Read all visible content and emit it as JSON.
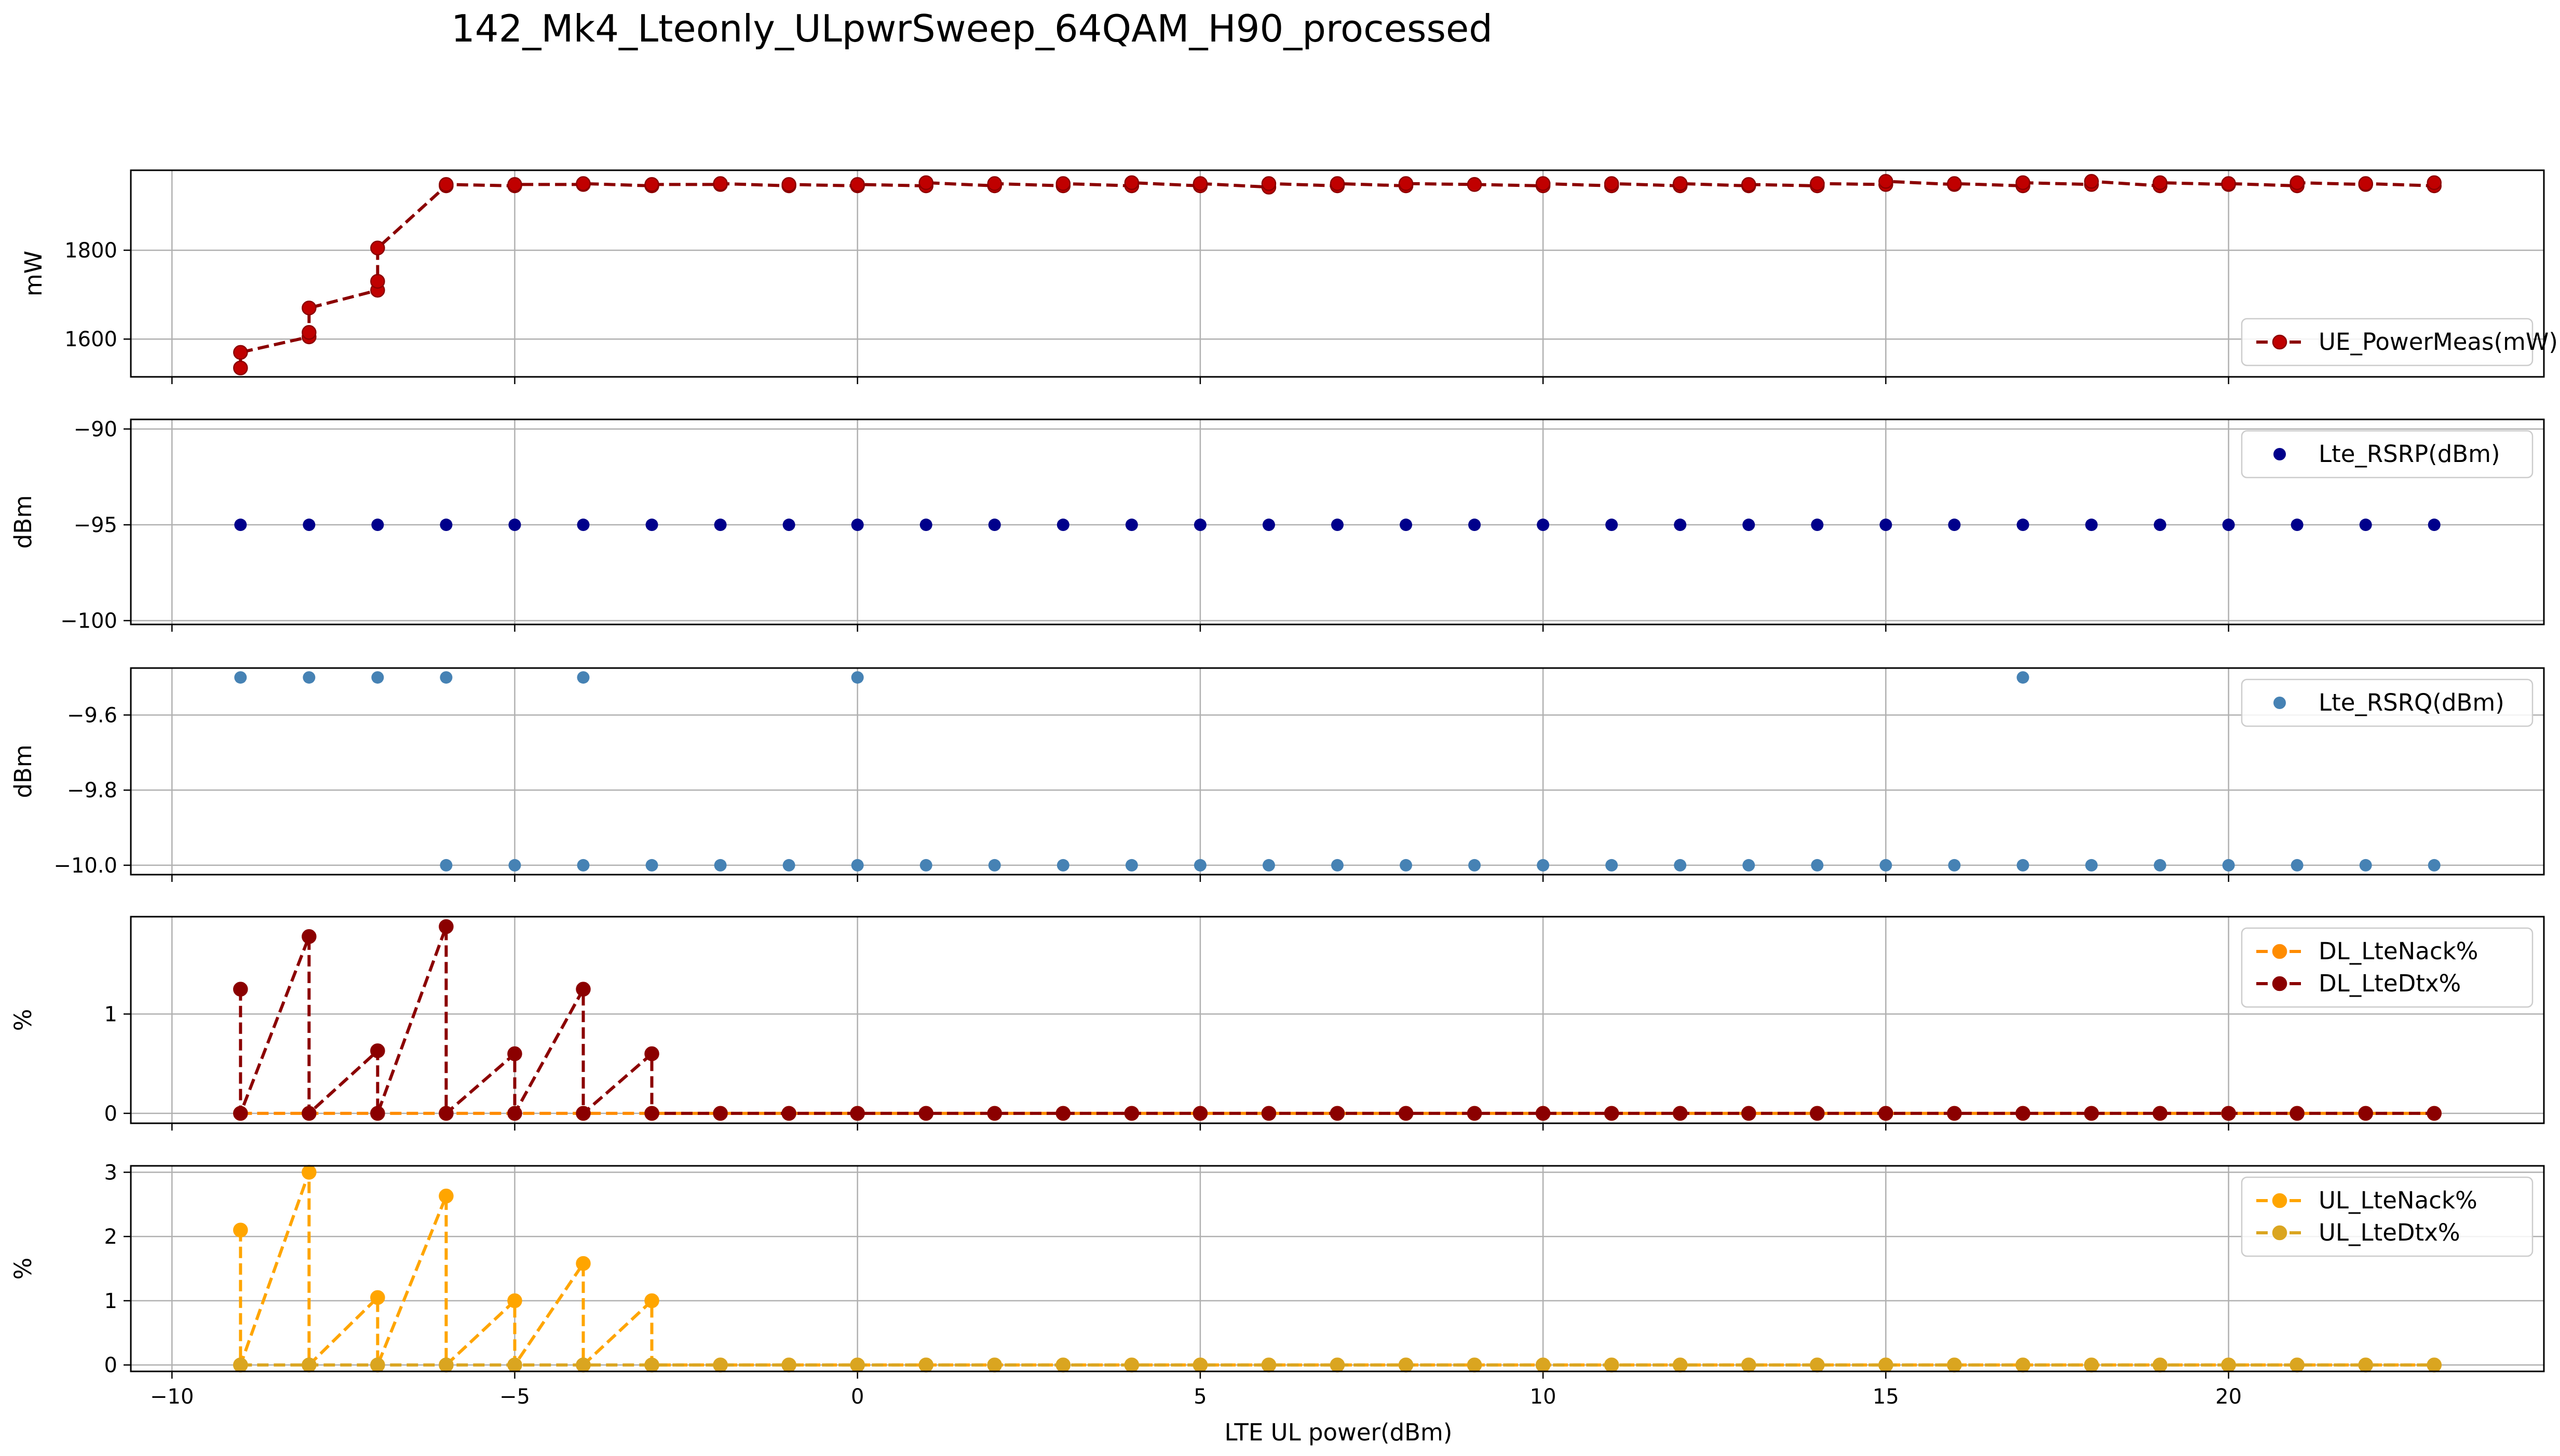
{
  "figure": {
    "title": "142_Mk4_Lteonly_ULpwrSweep_64QAM_H90_processed"
  },
  "colors": {
    "power": "#c00000",
    "power_edge": "#8b0000",
    "rsrp": "#00008b",
    "rsrq": "#4682b4",
    "dl_nack": "#ff8c00",
    "dl_dtx": "#8b0000",
    "ul_nack": "#ffa500",
    "ul_dtx": "#daa520",
    "grid": "#b0b0b0"
  },
  "chart_data": [
    {
      "type": "line",
      "ylabel": "mW",
      "xlabel": "",
      "xlim": [
        -10.6,
        24.6
      ],
      "ylim": [
        1515,
        1980
      ],
      "yticks": [
        1600,
        1800
      ],
      "ytick_labels": [
        "1600",
        "1800"
      ],
      "xticks": [
        -10,
        -5,
        0,
        5,
        10,
        15,
        20
      ],
      "xtick_labels": [],
      "grid": true,
      "legend": "lower-right",
      "series": [
        {
          "name": "UE_PowerMeas(mW)",
          "style": "dashed-marker",
          "color_key": "power",
          "edge_key": "power_edge",
          "x": [
            -9,
            -9,
            -8,
            -8,
            -8,
            -7,
            -7,
            -7,
            -6,
            -6,
            -5,
            -5,
            -4,
            -4,
            -3,
            -3,
            -2,
            -2,
            -1,
            -1,
            0,
            0,
            1,
            1,
            2,
            2,
            3,
            3,
            4,
            4,
            5,
            5,
            6,
            6,
            7,
            7,
            8,
            8,
            9,
            9,
            10,
            10,
            11,
            11,
            12,
            12,
            13,
            13,
            14,
            14,
            15,
            15,
            16,
            16,
            17,
            17,
            18,
            18,
            19,
            19,
            20,
            20,
            21,
            21,
            22,
            22,
            23,
            23
          ],
          "y": [
            1535,
            1570,
            1605,
            1615,
            1670,
            1710,
            1730,
            1805,
            1945,
            1948,
            1945,
            1948,
            1948,
            1950,
            1945,
            1948,
            1948,
            1950,
            1945,
            1948,
            1945,
            1948,
            1945,
            1952,
            1945,
            1950,
            1945,
            1950,
            1945,
            1952,
            1945,
            1950,
            1942,
            1950,
            1945,
            1950,
            1945,
            1950,
            1948,
            1948,
            1945,
            1950,
            1945,
            1950,
            1945,
            1950,
            1945,
            1948,
            1945,
            1950,
            1948,
            1955,
            1948,
            1950,
            1945,
            1952,
            1948,
            1955,
            1945,
            1952,
            1948,
            1950,
            1945,
            1952,
            1948,
            1950,
            1945,
            1952
          ]
        }
      ]
    },
    {
      "type": "scatter",
      "ylabel": "dBm",
      "xlabel": "",
      "xlim": [
        -10.6,
        24.6
      ],
      "ylim": [
        -100.2,
        -89.5
      ],
      "yticks": [
        -100,
        -95,
        -90
      ],
      "ytick_labels": [
        "−100",
        "−95",
        "−90"
      ],
      "xticks": [
        -10,
        -5,
        0,
        5,
        10,
        15,
        20
      ],
      "xtick_labels": [],
      "grid": true,
      "legend": "upper-right",
      "series": [
        {
          "name": "Lte_RSRP(dBm)",
          "style": "scatter",
          "color_key": "rsrp",
          "x": [
            -9,
            -8,
            -7,
            -6,
            -5,
            -4,
            -3,
            -2,
            -1,
            0,
            1,
            2,
            3,
            4,
            5,
            6,
            7,
            8,
            9,
            10,
            11,
            12,
            13,
            14,
            15,
            16,
            17,
            18,
            19,
            20,
            21,
            22,
            23
          ],
          "y": [
            -95,
            -95,
            -95,
            -95,
            -95,
            -95,
            -95,
            -95,
            -95,
            -95,
            -95,
            -95,
            -95,
            -95,
            -95,
            -95,
            -95,
            -95,
            -95,
            -95,
            -95,
            -95,
            -95,
            -95,
            -95,
            -95,
            -95,
            -95,
            -95,
            -95,
            -95,
            -95,
            -95
          ]
        }
      ]
    },
    {
      "type": "scatter",
      "ylabel": "dBm",
      "xlabel": "",
      "xlim": [
        -10.6,
        24.6
      ],
      "ylim": [
        -10.025,
        -9.475
      ],
      "yticks": [
        -10.0,
        -9.8,
        -9.6
      ],
      "ytick_labels": [
        "−10.0",
        "−9.8",
        "−9.6"
      ],
      "xticks": [
        -10,
        -5,
        0,
        5,
        10,
        15,
        20
      ],
      "xtick_labels": [],
      "grid": true,
      "legend": "upper-right",
      "series": [
        {
          "name": "Lte_RSRQ(dBm)",
          "style": "scatter",
          "color_key": "rsrq",
          "x": [
            -9,
            -8,
            -7,
            -6,
            -4,
            0,
            17,
            -6,
            -5,
            -4,
            -3,
            -2,
            -1,
            0,
            1,
            2,
            3,
            4,
            5,
            6,
            7,
            8,
            9,
            10,
            11,
            12,
            13,
            14,
            15,
            16,
            17,
            18,
            19,
            20,
            21,
            22,
            23
          ],
          "y": [
            -9.5,
            -9.5,
            -9.5,
            -9.5,
            -9.5,
            -9.5,
            -9.5,
            -10,
            -10,
            -10,
            -10,
            -10,
            -10,
            -10,
            -10,
            -10,
            -10,
            -10,
            -10,
            -10,
            -10,
            -10,
            -10,
            -10,
            -10,
            -10,
            -10,
            -10,
            -10,
            -10,
            -10,
            -10,
            -10,
            -10,
            -10,
            -10,
            -10
          ]
        }
      ]
    },
    {
      "type": "line",
      "ylabel": "%",
      "xlabel": "",
      "xlim": [
        -10.6,
        24.6
      ],
      "ylim": [
        -0.1,
        1.98
      ],
      "yticks": [
        0,
        1
      ],
      "ytick_labels": [
        "0",
        "1"
      ],
      "xticks": [
        -10,
        -5,
        0,
        5,
        10,
        15,
        20
      ],
      "xtick_labels": [],
      "grid": true,
      "legend": "upper-right",
      "series": [
        {
          "name": "DL_LteNack%",
          "style": "dashed-marker",
          "color_key": "dl_nack",
          "x": [
            -9,
            -8,
            -7,
            -6,
            -5,
            -4,
            -3,
            -2,
            -1,
            0,
            1,
            2,
            3,
            4,
            5,
            6,
            7,
            8,
            9,
            10,
            11,
            12,
            13,
            14,
            15,
            16,
            17,
            18,
            19,
            20,
            21,
            22,
            23
          ],
          "y": [
            0,
            0,
            0,
            0,
            0,
            0,
            0,
            0,
            0,
            0,
            0,
            0,
            0,
            0,
            0,
            0,
            0,
            0,
            0,
            0,
            0,
            0,
            0,
            0,
            0,
            0,
            0,
            0,
            0,
            0,
            0,
            0,
            0
          ]
        },
        {
          "name": "DL_LteDtx%",
          "style": "dashed-marker",
          "color_key": "dl_dtx",
          "x": [
            -9,
            -9,
            -8,
            -8,
            -7,
            -7,
            -6,
            -6,
            -5,
            -5,
            -4,
            -4,
            -3,
            -3,
            -2,
            -1,
            0,
            1,
            2,
            3,
            4,
            5,
            6,
            7,
            8,
            9,
            10,
            11,
            12,
            13,
            14,
            15,
            16,
            17,
            18,
            19,
            20,
            21,
            22,
            23
          ],
          "y": [
            1.25,
            0,
            1.78,
            0,
            0.63,
            0,
            1.88,
            0,
            0.6,
            0,
            1.25,
            0,
            0.6,
            0,
            0,
            0,
            0,
            0,
            0,
            0,
            0,
            0,
            0,
            0,
            0,
            0,
            0,
            0,
            0,
            0,
            0,
            0,
            0,
            0,
            0,
            0,
            0,
            0,
            0,
            0
          ]
        }
      ]
    },
    {
      "type": "line",
      "ylabel": "%",
      "xlabel": "LTE UL power(dBm)",
      "xlim": [
        -10.6,
        24.6
      ],
      "ylim": [
        -0.1,
        3.1
      ],
      "yticks": [
        0,
        1,
        2,
        3
      ],
      "ytick_labels": [
        "0",
        "1",
        "2",
        "3"
      ],
      "xticks": [
        -10,
        -5,
        0,
        5,
        10,
        15,
        20
      ],
      "xtick_labels": [
        "−10",
        "−5",
        "0",
        "5",
        "10",
        "15",
        "20"
      ],
      "grid": true,
      "legend": "upper-right",
      "series": [
        {
          "name": "UL_LteNack%",
          "style": "dashed-marker",
          "color_key": "ul_nack",
          "x": [
            -9,
            -9,
            -8,
            -8,
            -7,
            -7,
            -6,
            -6,
            -5,
            -5,
            -4,
            -4,
            -3,
            -3,
            -2,
            -1,
            0,
            1,
            2,
            3,
            4,
            5,
            6,
            7,
            8,
            9,
            10,
            11,
            12,
            13,
            14,
            15,
            16,
            17,
            18,
            19,
            20,
            21,
            22,
            23
          ],
          "y": [
            2.1,
            0,
            3.0,
            0,
            1.05,
            0,
            2.63,
            0,
            1.0,
            0,
            1.58,
            0,
            1.0,
            0,
            0,
            0,
            0,
            0,
            0,
            0,
            0,
            0,
            0,
            0,
            0,
            0,
            0,
            0,
            0,
            0,
            0,
            0,
            0,
            0,
            0,
            0,
            0,
            0,
            0,
            0
          ]
        },
        {
          "name": "UL_LteDtx%",
          "style": "dashed-marker",
          "color_key": "ul_dtx",
          "x": [
            -9,
            -8,
            -7,
            -6,
            -5,
            -4,
            -3,
            -2,
            -1,
            0,
            1,
            2,
            3,
            4,
            5,
            6,
            7,
            8,
            9,
            10,
            11,
            12,
            13,
            14,
            15,
            16,
            17,
            18,
            19,
            20,
            21,
            22,
            23
          ],
          "y": [
            0,
            0,
            0,
            0,
            0,
            0,
            0,
            0,
            0,
            0,
            0,
            0,
            0,
            0,
            0,
            0,
            0,
            0,
            0,
            0,
            0,
            0,
            0,
            0,
            0,
            0,
            0,
            0,
            0,
            0,
            0,
            0,
            0
          ]
        }
      ]
    }
  ]
}
